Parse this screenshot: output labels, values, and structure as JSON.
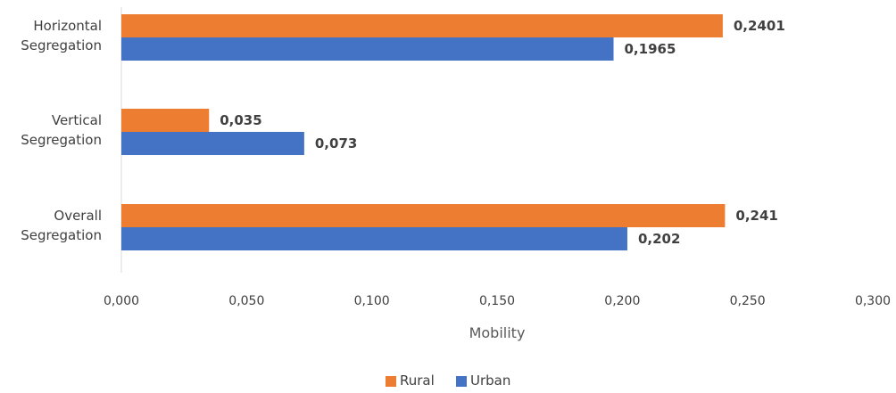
{
  "chart_data": {
    "type": "bar",
    "orientation": "horizontal",
    "categories": [
      "Horizontal Segregation",
      "Vertical Segregation",
      "Overall Segregation"
    ],
    "category_lines": [
      [
        "Horizontal",
        "Segregation"
      ],
      [
        "Vertical",
        "Segregation"
      ],
      [
        "Overall",
        "Segregation"
      ]
    ],
    "series": [
      {
        "name": "Rural",
        "color": "#ED7D31",
        "values": [
          0.2401,
          0.035,
          0.241
        ],
        "value_labels": [
          "0,2401",
          "0,035",
          "0,241"
        ]
      },
      {
        "name": "Urban",
        "color": "#4472C4",
        "values": [
          0.1965,
          0.073,
          0.202
        ],
        "value_labels": [
          "0,1965",
          "0,073",
          "0,202"
        ]
      }
    ],
    "xlim": [
      0,
      0.3
    ],
    "xticks": [
      0,
      0.05,
      0.1,
      0.15,
      0.2,
      0.25,
      0.3
    ],
    "xtick_labels": [
      "0,000",
      "0,050",
      "0,100",
      "0,150",
      "0,200",
      "0,250",
      "0,300"
    ],
    "xlabel": "Mobility",
    "ylabel": "",
    "grid": false,
    "legend_position": "bottom"
  }
}
